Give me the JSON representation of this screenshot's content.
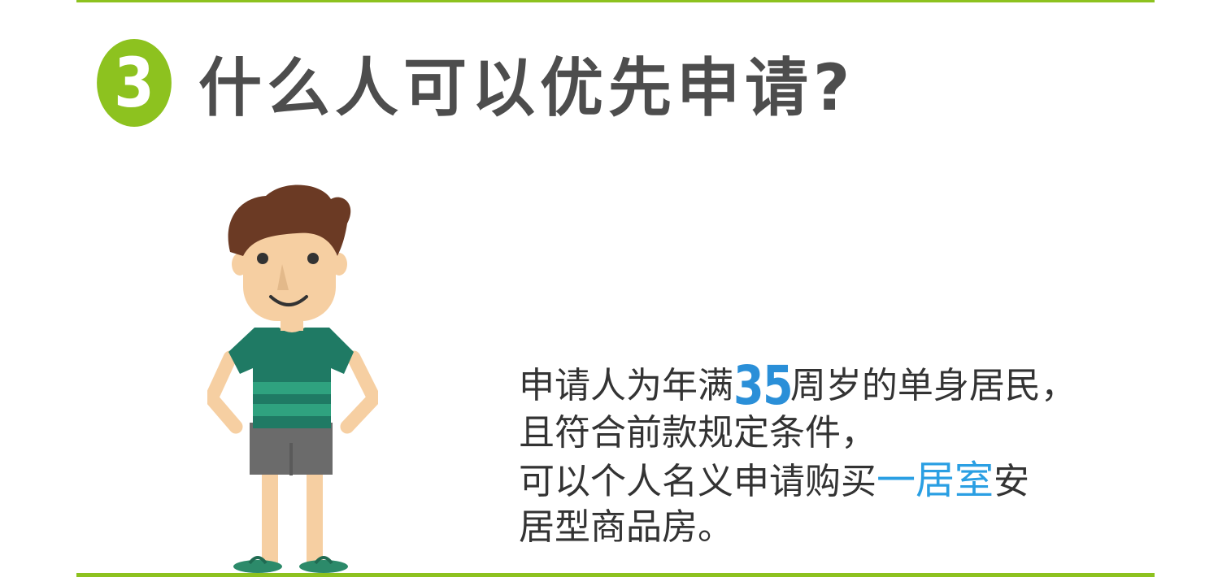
{
  "header": {
    "badge_number": "3",
    "title": "什么人可以优先申请?",
    "accent_color": "#8dc21f"
  },
  "illustration": {
    "icon": "cartoon-man-icon"
  },
  "body": {
    "line1": {
      "before": "申请人为年满",
      "number": "35",
      "after": "周岁的单身居民，"
    },
    "line2": "且符合前款规定条件，",
    "line3": {
      "before": "可以个人名义申请购买",
      "highlight": "一居室",
      "after": "安"
    },
    "line4": "居型商品房。",
    "highlight_color": "#2a9fe3"
  }
}
